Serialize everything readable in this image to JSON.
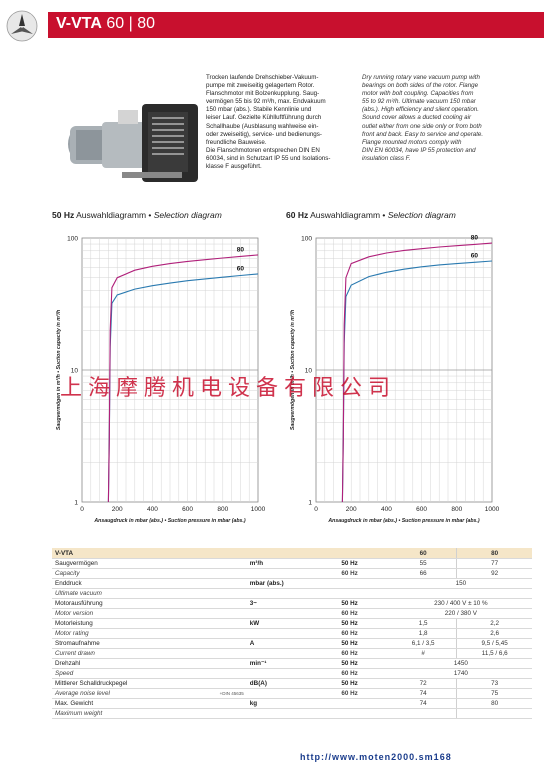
{
  "header": {
    "title_bold": "V-VTA",
    "title_rest": " 60 | 80"
  },
  "description": {
    "de": [
      "Trocken laufende Drehschieber-Vakuum-",
      "pumpe mit zweiseitig gelagertem Rotor.",
      "Flanschmotor mit Bolzenkupplung. Saug-",
      "vermögen 55 bis 92 m³/h, max. Endvakuum",
      "150 mbar (abs.). Stabile Kennlinie und",
      "leiser Lauf. Gezielte Kühlluftführung durch",
      "Schallhaube (Ausblasung wahlweise ein-",
      "oder zweiseitig), service- und bedienungs-",
      "freundliche Bauweise.",
      "Die Flanschmotoren entsprechen DIN EN",
      "60034, sind in Schutzart IP 55 und Isolations-",
      "klasse F ausgeführt."
    ],
    "en": [
      "Dry running rotary vane vacuum pump with",
      "bearings on both sides of the rotor. Flange",
      "motor with bolt coupling. Capacities from",
      "55 to 92 m³/h. Ultimate vacuum 150 mbar",
      "(abs.). High efficiency and silent operation.",
      "Sound cover allows a ducted cooling air",
      "outlet either from one side only or from both",
      "front and back. Easy to service and operate.",
      "Flange mounted motors comply with",
      "DIN EN 60034, have IP 55 protection and",
      "insulation class F."
    ]
  },
  "chart_titles": {
    "left": {
      "hz": "50 Hz",
      "de": " Auswahldiagramm • ",
      "en": "Selection diagram"
    },
    "right": {
      "hz": "60 Hz",
      "de": " Auswahldiagramm • ",
      "en": "Selection diagram"
    }
  },
  "chart_data": [
    {
      "type": "line",
      "title": "50 Hz Auswahldiagramm • Selection diagram",
      "xlabel": "Ansaugdruck in mbar (abs.) • Suction pressure in mbar (abs.)",
      "ylabel": "Saugvermögen in m³/h • Suction capacity in m³/h",
      "xlim": [
        0,
        1000
      ],
      "ylim": [
        1,
        100
      ],
      "yscale": "log",
      "xticks": [
        "0",
        "200",
        "400",
        "600",
        "800",
        "1000"
      ],
      "yticks": [
        "1",
        "10",
        "100"
      ],
      "grid": true,
      "colors": [
        "#2a7ab0",
        "#b0207a"
      ],
      "series": [
        {
          "name": "60",
          "x": [
            150,
            155,
            160,
            170,
            200,
            300,
            400,
            500,
            600,
            700,
            800,
            900,
            1000
          ],
          "y": [
            1,
            3,
            15,
            32,
            37,
            41,
            43.5,
            45.5,
            47.5,
            49,
            50.5,
            52,
            53.5
          ]
        },
        {
          "name": "80",
          "x": [
            150,
            155,
            160,
            170,
            200,
            300,
            400,
            500,
            600,
            700,
            800,
            900,
            1000
          ],
          "y": [
            1,
            3,
            20,
            42,
            50,
            57,
            61,
            64,
            66.5,
            68.5,
            70.5,
            72.5,
            74.5
          ]
        }
      ]
    },
    {
      "type": "line",
      "title": "60 Hz Auswahldiagramm • Selection diagram",
      "xlabel": "Ansaugdruck in mbar (abs.) • Suction pressure in mbar (abs.)",
      "ylabel": "Saugvermögen in m³/h • Suction capacity in m³/h",
      "xlim": [
        0,
        1000
      ],
      "ylim": [
        1,
        100
      ],
      "yscale": "log",
      "xticks": [
        "0",
        "200",
        "400",
        "600",
        "800",
        "1000"
      ],
      "yticks": [
        "1",
        "10",
        "100"
      ],
      "grid": true,
      "colors": [
        "#2a7ab0",
        "#b0207a"
      ],
      "series": [
        {
          "name": "60",
          "x": [
            150,
            155,
            160,
            170,
            200,
            300,
            400,
            500,
            600,
            700,
            800,
            900,
            1000
          ],
          "y": [
            1,
            3,
            16,
            36,
            44,
            51,
            55,
            58,
            60.5,
            62.5,
            64,
            65.5,
            67
          ]
        },
        {
          "name": "80",
          "x": [
            150,
            155,
            160,
            170,
            200,
            300,
            400,
            500,
            600,
            700,
            800,
            900,
            1000
          ],
          "y": [
            1,
            3,
            22,
            50,
            64,
            72,
            77,
            80.5,
            83,
            85.5,
            87.5,
            89.5,
            91.5
          ]
        }
      ]
    }
  ],
  "spec_table": {
    "header": {
      "label": "V-VTA",
      "col1": "60",
      "col2": "80"
    },
    "rows": [
      {
        "de": "Saugvermögen",
        "en": "Capacity",
        "unit": "m³/h",
        "hz1": "50 Hz",
        "hz2": "60 Hz",
        "v1": [
          "55",
          "66"
        ],
        "v2": [
          "77",
          "92"
        ]
      },
      {
        "de": "Enddruck",
        "en": "Ultimate vacuum",
        "unit": "mbar (abs.)",
        "hz1": "",
        "hz2": "",
        "span": [
          "150",
          ""
        ]
      },
      {
        "de": "Motorausführung",
        "en": "Motor version",
        "unit": "3~",
        "hz1": "50 Hz",
        "hz2": "60 Hz",
        "span": [
          "230 / 400 V ± 10 %",
          "220 / 380 V"
        ]
      },
      {
        "de": "Motorleistung",
        "en": "Motor rating",
        "unit": "kW",
        "hz1": "50 Hz",
        "hz2": "60 Hz",
        "v1": [
          "1,5",
          "1,8"
        ],
        "v2": [
          "2,2",
          "2,6"
        ]
      },
      {
        "de": "Stromaufnahme",
        "en": "Current drawn",
        "unit": "A",
        "hz1": "50 Hz",
        "hz2": "60 Hz",
        "v1": [
          "6,1 / 3,5",
          "#"
        ],
        "v2": [
          "9,5 / 5,45",
          "11,5 / 6,6"
        ]
      },
      {
        "de": "Drehzahl",
        "en": "Speed",
        "unit": "min⁻¹",
        "hz1": "50 Hz",
        "hz2": "60 Hz",
        "span": [
          "1450",
          "1740"
        ]
      },
      {
        "de": "Mittlerer Schalldruckpegel",
        "en": "Average noise level",
        "en_note": "+DIN 45635",
        "unit": "dB(A)",
        "hz1": "50 Hz",
        "hz2": "60 Hz",
        "v1": [
          "72",
          "74"
        ],
        "v2": [
          "73",
          "75"
        ]
      },
      {
        "de": "Max. Gewicht",
        "en": "Maximum weight",
        "unit": "kg",
        "hz1": "",
        "hz2": "",
        "v1": [
          "74",
          ""
        ],
        "v2": [
          "80",
          ""
        ]
      }
    ]
  },
  "watermark": "上海摩腾机电设备有限公司",
  "footer_url": "http://www.moten2000.sm168",
  "colors": {
    "brand_red": "#c8102e",
    "series_60": "#2a7ab0",
    "series_80": "#b0207a"
  }
}
